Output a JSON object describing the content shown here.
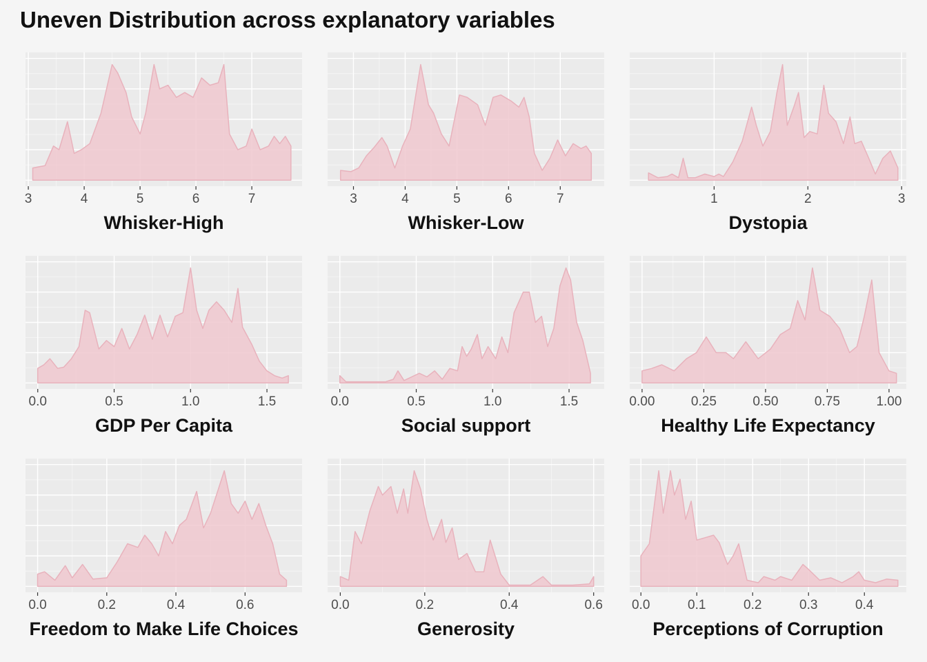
{
  "title": "Uneven Distribution across explanatory variables",
  "colors": {
    "background": "#f5f5f5",
    "panel": "#ebebeb",
    "grid": "#ffffff",
    "fill": "#f0c8cf",
    "line": "#e8b2bc"
  },
  "chart_data": [
    {
      "type": "area",
      "xlabel": "Whisker-High",
      "xlim": [
        2.95,
        7.9
      ],
      "xticks": [
        3,
        4,
        5,
        6,
        7
      ],
      "tick_labels": [
        "3",
        "4",
        "5",
        "6",
        "7"
      ],
      "x": [
        3.08,
        3.3,
        3.45,
        3.55,
        3.7,
        3.82,
        3.95,
        4.1,
        4.3,
        4.5,
        4.6,
        4.75,
        4.85,
        5.0,
        5.1,
        5.25,
        5.35,
        5.5,
        5.65,
        5.8,
        5.95,
        6.1,
        6.25,
        6.4,
        6.5,
        6.6,
        6.75,
        6.9,
        7.0,
        7.15,
        7.3,
        7.4,
        7.5,
        7.6,
        7.7
      ],
      "y": [
        0.1,
        0.12,
        0.28,
        0.25,
        0.48,
        0.22,
        0.25,
        0.3,
        0.55,
        0.95,
        0.88,
        0.72,
        0.52,
        0.38,
        0.55,
        0.95,
        0.75,
        0.78,
        0.68,
        0.72,
        0.68,
        0.84,
        0.78,
        0.8,
        0.95,
        0.38,
        0.25,
        0.28,
        0.42,
        0.25,
        0.28,
        0.36,
        0.3,
        0.36,
        0.28
      ]
    },
    {
      "type": "area",
      "xlabel": "Whisker-Low",
      "xlim": [
        2.5,
        7.85
      ],
      "xticks": [
        3,
        4,
        5,
        6,
        7
      ],
      "tick_labels": [
        "3",
        "4",
        "5",
        "6",
        "7"
      ],
      "x": [
        2.75,
        2.95,
        3.1,
        3.25,
        3.4,
        3.55,
        3.65,
        3.8,
        3.95,
        4.1,
        4.3,
        4.45,
        4.55,
        4.7,
        4.85,
        5.05,
        5.2,
        5.4,
        5.55,
        5.7,
        5.85,
        6.05,
        6.2,
        6.3,
        6.4,
        6.5,
        6.65,
        6.8,
        6.95,
        7.1,
        7.25,
        7.4,
        7.5,
        7.6
      ],
      "y": [
        0.08,
        0.07,
        0.1,
        0.2,
        0.27,
        0.35,
        0.28,
        0.1,
        0.28,
        0.42,
        0.95,
        0.62,
        0.55,
        0.38,
        0.28,
        0.7,
        0.68,
        0.62,
        0.45,
        0.68,
        0.7,
        0.65,
        0.6,
        0.68,
        0.52,
        0.22,
        0.08,
        0.18,
        0.33,
        0.2,
        0.3,
        0.26,
        0.28,
        0.22
      ]
    },
    {
      "type": "area",
      "xlabel": "Dystopia",
      "xlim": [
        0.1,
        3.05
      ],
      "xticks": [
        1,
        2,
        3
      ],
      "tick_labels": [
        "1",
        "2",
        "3"
      ],
      "x": [
        0.3,
        0.4,
        0.5,
        0.55,
        0.62,
        0.67,
        0.72,
        0.8,
        0.9,
        1.0,
        1.05,
        1.1,
        1.2,
        1.3,
        1.4,
        1.45,
        1.52,
        1.6,
        1.67,
        1.73,
        1.78,
        1.85,
        1.9,
        1.96,
        2.02,
        2.1,
        2.17,
        2.22,
        2.3,
        2.38,
        2.45,
        2.5,
        2.57,
        2.65,
        2.72,
        2.8,
        2.88,
        2.96
      ],
      "y": [
        0.06,
        0.02,
        0.03,
        0.05,
        0.02,
        0.18,
        0.02,
        0.02,
        0.05,
        0.03,
        0.05,
        0.03,
        0.15,
        0.32,
        0.6,
        0.45,
        0.28,
        0.4,
        0.72,
        0.95,
        0.45,
        0.6,
        0.72,
        0.35,
        0.4,
        0.38,
        0.78,
        0.55,
        0.48,
        0.3,
        0.52,
        0.3,
        0.32,
        0.18,
        0.05,
        0.18,
        0.24,
        0.1
      ]
    },
    {
      "type": "area",
      "xlabel": "GDP Per Capita",
      "xlim": [
        -0.08,
        1.73
      ],
      "xticks": [
        0,
        0.5,
        1,
        1.5
      ],
      "tick_labels": [
        "0.0",
        "0.5",
        "1.0",
        "1.5"
      ],
      "x": [
        0.0,
        0.04,
        0.08,
        0.13,
        0.17,
        0.22,
        0.27,
        0.31,
        0.34,
        0.4,
        0.45,
        0.5,
        0.55,
        0.6,
        0.65,
        0.7,
        0.75,
        0.8,
        0.85,
        0.9,
        0.95,
        1.0,
        1.04,
        1.08,
        1.12,
        1.17,
        1.22,
        1.27,
        1.31,
        1.34,
        1.4,
        1.45,
        1.5,
        1.55,
        1.6,
        1.64
      ],
      "y": [
        0.12,
        0.15,
        0.2,
        0.12,
        0.13,
        0.2,
        0.3,
        0.6,
        0.58,
        0.28,
        0.35,
        0.3,
        0.45,
        0.28,
        0.4,
        0.56,
        0.36,
        0.56,
        0.38,
        0.55,
        0.58,
        0.95,
        0.6,
        0.45,
        0.6,
        0.67,
        0.6,
        0.5,
        0.78,
        0.46,
        0.32,
        0.18,
        0.1,
        0.06,
        0.04,
        0.06
      ]
    },
    {
      "type": "area",
      "xlabel": "Social support",
      "xlim": [
        -0.08,
        1.73
      ],
      "xticks": [
        0,
        0.5,
        1,
        1.5
      ],
      "tick_labels": [
        "0.0",
        "0.5",
        "1.0",
        "1.5"
      ],
      "x": [
        0.0,
        0.04,
        0.15,
        0.3,
        0.35,
        0.38,
        0.42,
        0.47,
        0.52,
        0.57,
        0.62,
        0.67,
        0.72,
        0.77,
        0.8,
        0.83,
        0.86,
        0.9,
        0.93,
        0.97,
        1.02,
        1.06,
        1.1,
        1.14,
        1.2,
        1.24,
        1.28,
        1.32,
        1.36,
        1.4,
        1.44,
        1.48,
        1.51,
        1.55,
        1.59,
        1.64
      ],
      "y": [
        0.06,
        0.01,
        0.01,
        0.01,
        0.03,
        0.1,
        0.02,
        0.05,
        0.08,
        0.05,
        0.1,
        0.03,
        0.12,
        0.1,
        0.3,
        0.22,
        0.28,
        0.4,
        0.2,
        0.3,
        0.2,
        0.38,
        0.25,
        0.58,
        0.75,
        0.75,
        0.5,
        0.55,
        0.3,
        0.45,
        0.8,
        0.95,
        0.85,
        0.5,
        0.35,
        0.08
      ]
    },
    {
      "type": "area",
      "xlabel": "Healthy Life Expectancy",
      "xlim": [
        -0.05,
        1.07
      ],
      "xticks": [
        0,
        0.25,
        0.5,
        0.75,
        1.0
      ],
      "tick_labels": [
        "0.00",
        "0.25",
        "0.50",
        "0.75",
        "1.00"
      ],
      "x": [
        0.0,
        0.04,
        0.08,
        0.13,
        0.18,
        0.22,
        0.26,
        0.3,
        0.34,
        0.37,
        0.42,
        0.47,
        0.52,
        0.56,
        0.6,
        0.63,
        0.66,
        0.69,
        0.72,
        0.76,
        0.8,
        0.84,
        0.87,
        0.9,
        0.93,
        0.96,
        1.0,
        1.03
      ],
      "y": [
        0.1,
        0.12,
        0.15,
        0.1,
        0.2,
        0.25,
        0.38,
        0.25,
        0.25,
        0.2,
        0.34,
        0.2,
        0.28,
        0.4,
        0.45,
        0.68,
        0.52,
        0.95,
        0.6,
        0.55,
        0.45,
        0.25,
        0.3,
        0.55,
        0.85,
        0.25,
        0.1,
        0.08
      ]
    },
    {
      "type": "area",
      "xlabel": "Freedom to Make Life Choices",
      "xlim": [
        -0.035,
        0.765
      ],
      "xticks": [
        0,
        0.2,
        0.4,
        0.6
      ],
      "tick_labels": [
        "0.0",
        "0.2",
        "0.4",
        "0.6"
      ],
      "x": [
        0.0,
        0.02,
        0.05,
        0.08,
        0.1,
        0.13,
        0.16,
        0.2,
        0.23,
        0.26,
        0.29,
        0.31,
        0.33,
        0.35,
        0.37,
        0.39,
        0.41,
        0.43,
        0.46,
        0.48,
        0.5,
        0.54,
        0.56,
        0.58,
        0.6,
        0.62,
        0.64,
        0.66,
        0.68,
        0.7,
        0.72
      ],
      "y": [
        0.1,
        0.12,
        0.05,
        0.17,
        0.07,
        0.18,
        0.06,
        0.07,
        0.2,
        0.35,
        0.32,
        0.42,
        0.35,
        0.25,
        0.45,
        0.35,
        0.5,
        0.55,
        0.78,
        0.48,
        0.6,
        0.95,
        0.68,
        0.6,
        0.7,
        0.55,
        0.68,
        0.5,
        0.35,
        0.1,
        0.05
      ]
    },
    {
      "type": "area",
      "xlabel": "Generosity",
      "xlim": [
        -0.03,
        0.625
      ],
      "xticks": [
        0,
        0.2,
        0.4,
        0.6
      ],
      "tick_labels": [
        "0.0",
        "0.2",
        "0.4",
        "0.6"
      ],
      "x": [
        0.0,
        0.02,
        0.035,
        0.05,
        0.07,
        0.09,
        0.1,
        0.12,
        0.135,
        0.15,
        0.16,
        0.175,
        0.19,
        0.205,
        0.22,
        0.24,
        0.25,
        0.265,
        0.28,
        0.3,
        0.32,
        0.34,
        0.355,
        0.38,
        0.4,
        0.45,
        0.48,
        0.5,
        0.55,
        0.59,
        0.6
      ],
      "y": [
        0.08,
        0.05,
        0.45,
        0.35,
        0.62,
        0.82,
        0.75,
        0.82,
        0.6,
        0.8,
        0.6,
        0.95,
        0.8,
        0.55,
        0.38,
        0.55,
        0.36,
        0.48,
        0.22,
        0.27,
        0.12,
        0.12,
        0.38,
        0.1,
        0.01,
        0.01,
        0.08,
        0.01,
        0.01,
        0.02,
        0.08
      ]
    },
    {
      "type": "area",
      "xlabel": "Perceptions of Corruption",
      "xlim": [
        -0.02,
        0.475
      ],
      "xticks": [
        0,
        0.1,
        0.2,
        0.3,
        0.4
      ],
      "tick_labels": [
        "0.0",
        "0.1",
        "0.2",
        "0.3",
        "0.4"
      ],
      "x": [
        0.0,
        0.015,
        0.032,
        0.04,
        0.053,
        0.06,
        0.07,
        0.08,
        0.09,
        0.1,
        0.115,
        0.13,
        0.14,
        0.155,
        0.165,
        0.175,
        0.19,
        0.21,
        0.22,
        0.24,
        0.25,
        0.27,
        0.29,
        0.3,
        0.32,
        0.34,
        0.36,
        0.38,
        0.39,
        0.4,
        0.42,
        0.44,
        0.46
      ],
      "y": [
        0.25,
        0.35,
        0.95,
        0.6,
        0.95,
        0.75,
        0.88,
        0.55,
        0.7,
        0.38,
        0.4,
        0.42,
        0.36,
        0.18,
        0.25,
        0.35,
        0.05,
        0.03,
        0.08,
        0.05,
        0.08,
        0.05,
        0.18,
        0.14,
        0.05,
        0.07,
        0.03,
        0.08,
        0.12,
        0.05,
        0.03,
        0.06,
        0.05
      ]
    }
  ]
}
